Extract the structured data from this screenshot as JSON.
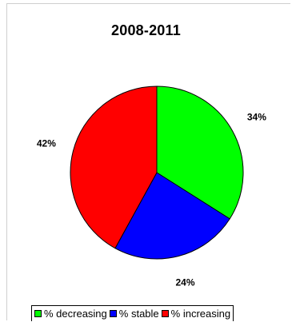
{
  "chart_data": {
    "type": "pie",
    "title": "2008-2011",
    "slices": [
      {
        "name": "% decreasing",
        "value": 34,
        "label": "34%",
        "color": "#00ff00"
      },
      {
        "name": "% stable",
        "value": 24,
        "label": "24%",
        "color": "#0000ff"
      },
      {
        "name": "% increasing",
        "value": 42,
        "label": "42%",
        "color": "#ff0000"
      }
    ],
    "start_angle": "12 o'clock",
    "direction": "clockwise",
    "legend_position": "bottom"
  }
}
